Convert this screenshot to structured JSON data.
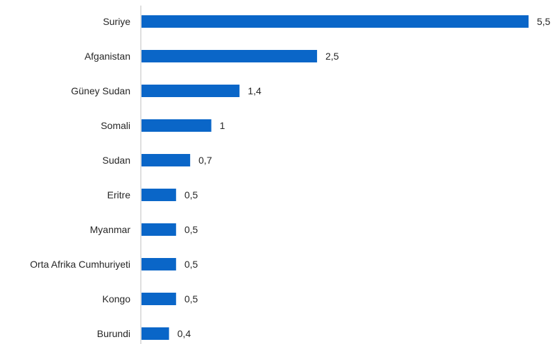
{
  "chart_data": {
    "type": "bar",
    "orientation": "horizontal",
    "categories": [
      "Suriye",
      "Afganistan",
      "Güney Sudan",
      "Somali",
      "Sudan",
      "Eritre",
      "Myanmar",
      "Orta Afrika Cumhuriyeti",
      "Kongo",
      "Burundi"
    ],
    "values": [
      5.5,
      2.5,
      1.4,
      1,
      0.7,
      0.5,
      0.5,
      0.5,
      0.5,
      0.4
    ],
    "value_labels": [
      "5,5",
      "2,5",
      "1,4",
      "1",
      "0,7",
      "0,5",
      "0,5",
      "0,5",
      "0,5",
      "0,4"
    ],
    "title": "",
    "xlabel": "",
    "ylabel": "",
    "xlim": [
      0,
      5.5
    ],
    "grid": false,
    "legend": "none",
    "bar_color": "#0a66c8",
    "axis_color": "#bfbfbf"
  }
}
